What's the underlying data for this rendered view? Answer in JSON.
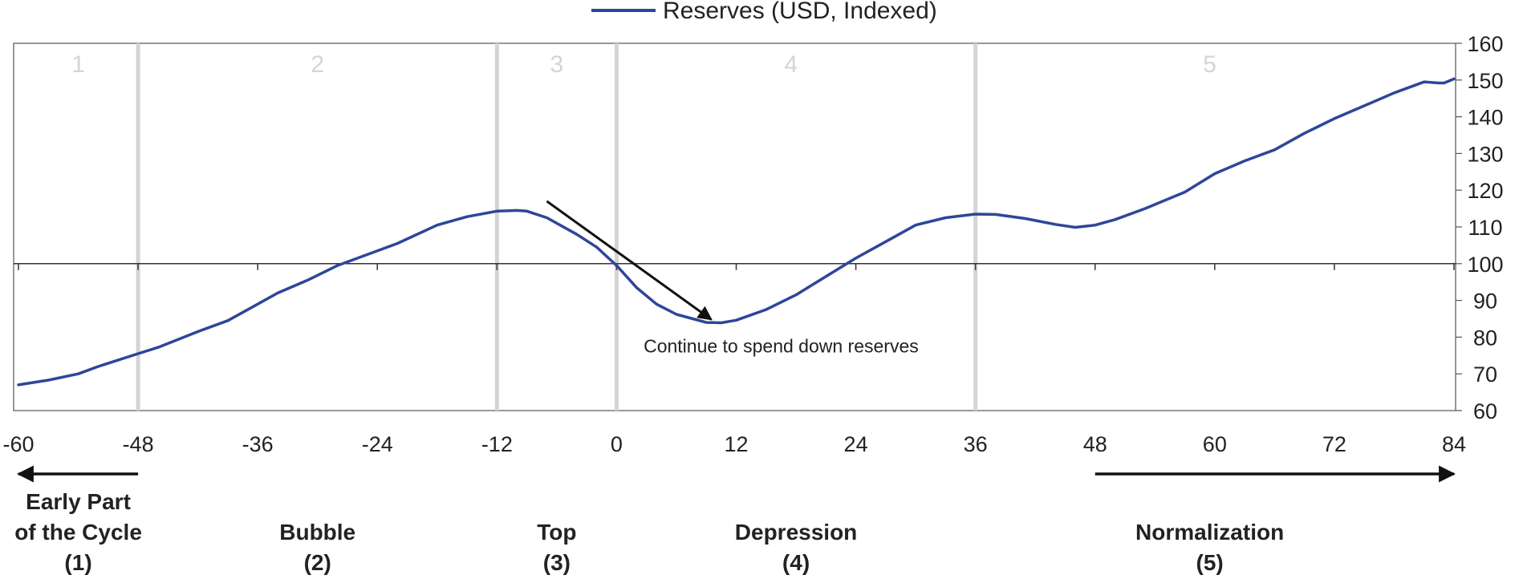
{
  "chart_data": {
    "type": "line",
    "legend": {
      "label": "Reserves (USD, Indexed)",
      "position": "top-center"
    },
    "xlim": [
      -60,
      84
    ],
    "ylim": [
      60,
      160
    ],
    "x_ticks": [
      "-60",
      "-48",
      "-36",
      "-24",
      "-12",
      "0",
      "12",
      "24",
      "36",
      "48",
      "60",
      "72",
      "84"
    ],
    "y_ticks": [
      "60",
      "70",
      "80",
      "90",
      "100",
      "110",
      "120",
      "130",
      "140",
      "150",
      "160"
    ],
    "baseline": 100,
    "phase_boundaries": [
      -48,
      -12,
      0,
      36
    ],
    "phase_numbers": [
      {
        "label": "1",
        "x": -54
      },
      {
        "label": "2",
        "x": -30
      },
      {
        "label": "3",
        "x": -6
      },
      {
        "label": "4",
        "x": 17.5
      },
      {
        "label": "5",
        "x": 59.5
      }
    ],
    "series": [
      {
        "name": "Reserves (USD, Indexed)",
        "color": "#2e4699",
        "points": [
          [
            -60,
            67
          ],
          [
            -57,
            68.3
          ],
          [
            -54,
            70
          ],
          [
            -52,
            72
          ],
          [
            -48,
            75.5
          ],
          [
            -46,
            77.2
          ],
          [
            -42,
            81.5
          ],
          [
            -39,
            84.5
          ],
          [
            -36,
            89
          ],
          [
            -34,
            92
          ],
          [
            -31,
            95.5
          ],
          [
            -28,
            99.5
          ],
          [
            -25,
            102.5
          ],
          [
            -22,
            105.5
          ],
          [
            -18,
            110.5
          ],
          [
            -15,
            112.8
          ],
          [
            -12,
            114.3
          ],
          [
            -10,
            114.5
          ],
          [
            -9,
            114.3
          ],
          [
            -7,
            112.5
          ],
          [
            -4,
            108
          ],
          [
            -2,
            104.5
          ],
          [
            0,
            99.5
          ],
          [
            2,
            93.5
          ],
          [
            4,
            89
          ],
          [
            6,
            86.2
          ],
          [
            9,
            84
          ],
          [
            10.5,
            83.9
          ],
          [
            12,
            84.6
          ],
          [
            15,
            87.5
          ],
          [
            18,
            91.5
          ],
          [
            21,
            96.5
          ],
          [
            24,
            101.5
          ],
          [
            27,
            106
          ],
          [
            30,
            110.5
          ],
          [
            33,
            112.5
          ],
          [
            36,
            113.5
          ],
          [
            38,
            113.4
          ],
          [
            41,
            112.3
          ],
          [
            44,
            110.7
          ],
          [
            46,
            109.9
          ],
          [
            48,
            110.5
          ],
          [
            50,
            112
          ],
          [
            53,
            115
          ],
          [
            57,
            119.5
          ],
          [
            60,
            124.5
          ],
          [
            63,
            128
          ],
          [
            66,
            131
          ],
          [
            69,
            135.5
          ],
          [
            72,
            139.5
          ],
          [
            75,
            143
          ],
          [
            78,
            146.5
          ],
          [
            80,
            148.5
          ],
          [
            81,
            149.5
          ],
          [
            82.5,
            149.2
          ],
          [
            83,
            149.2
          ],
          [
            84,
            150.3
          ]
        ]
      }
    ],
    "annotations": [
      {
        "text": "Continue to spend down reserves",
        "x": 16.5,
        "y": 75.8
      }
    ],
    "arrows": [
      {
        "from": [
          -7,
          117
        ],
        "to": [
          9.5,
          84.8
        ]
      }
    ],
    "range_arrows": [
      {
        "from": -48,
        "to": -60
      },
      {
        "from": 48,
        "to": 84
      }
    ],
    "phase_names": [
      {
        "lines": [
          "Early Part",
          "of the Cycle",
          "(1)"
        ],
        "x": -54
      },
      {
        "lines": [
          "Bubble",
          "(2)"
        ],
        "x": -30
      },
      {
        "lines": [
          "Top",
          "(3)"
        ],
        "x": -6
      },
      {
        "lines": [
          "Depression",
          "(4)"
        ],
        "x": 18
      },
      {
        "lines": [
          "Normalization",
          "(5)"
        ],
        "x": 59.5
      }
    ],
    "grid": false
  }
}
